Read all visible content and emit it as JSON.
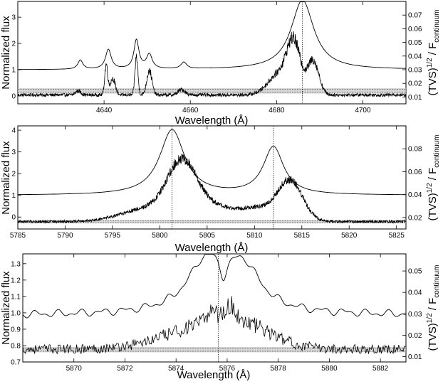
{
  "chart_data": [
    {
      "type": "line",
      "xlabel": "Wavelength (Å)",
      "ylabel_left": "Normalized flux",
      "ylabel_right": "(TVS)^1/2 / F_continuum",
      "ylabel_right_base": "(TVS)",
      "ylabel_right_exp": "1/2",
      "ylabel_right_mid": " / F",
      "ylabel_right_sub": "continuum",
      "xlim": [
        4620,
        4710
      ],
      "ylim_left": [
        -0.3,
        3.6
      ],
      "ylim_right": [
        0.005,
        0.08
      ],
      "x_ticks": [
        4640,
        4660,
        4680,
        4700
      ],
      "y_ticks_left": [
        0,
        1,
        2,
        3
      ],
      "y_ticks_right": [
        0.01,
        0.02,
        0.03,
        0.04,
        0.05,
        0.06,
        0.07
      ],
      "y_ticks_right_labels": [
        "0.01",
        "0.02",
        "0.03",
        "0.04",
        "0.05",
        "0.06",
        "0.07"
      ],
      "vlines": [
        4686
      ],
      "thresholds_right": [
        0.0135,
        0.0155
      ],
      "shaded_band_right": [
        0.0125,
        0.0165
      ],
      "mean_spectrum": {
        "baseline": 1.0,
        "lines": [
          {
            "center": 4634.5,
            "amp": 0.35,
            "width": 0.7
          },
          {
            "center": 4641,
            "amp": 0.75,
            "width": 0.8
          },
          {
            "center": 4647.5,
            "amp": 1.1,
            "width": 0.7
          },
          {
            "center": 4650.5,
            "amp": 0.55,
            "width": 0.8
          },
          {
            "center": 4658.5,
            "amp": 0.25,
            "width": 0.8
          },
          {
            "center": 4686,
            "amp": 2.65,
            "width": 3.2
          }
        ]
      },
      "tvs_profile": {
        "baseline": 0.0115,
        "noise": 0.0012,
        "bumps": [
          {
            "center": 4634,
            "amp": 0.003,
            "width": 0.6
          },
          {
            "center": 4640.5,
            "amp": 0.022,
            "width": 0.35
          },
          {
            "center": 4642,
            "amp": 0.012,
            "width": 0.6
          },
          {
            "center": 4647.5,
            "amp": 0.028,
            "width": 0.35
          },
          {
            "center": 4650.5,
            "amp": 0.018,
            "width": 0.6
          },
          {
            "center": 4658,
            "amp": 0.004,
            "width": 0.8
          },
          {
            "center": 4684,
            "amp": 0.036,
            "width": 1.6
          },
          {
            "center": 4680.5,
            "amp": 0.015,
            "width": 2.5
          },
          {
            "center": 4688.5,
            "amp": 0.025,
            "width": 1.3
          }
        ]
      }
    },
    {
      "type": "line",
      "xlabel": "Wavelength (Å)",
      "ylabel_left": "Normalized flux",
      "ylabel_right": "(TVS)^1/2 / F_continuum",
      "ylabel_right_base": "(TVS)",
      "ylabel_right_exp": "1/2",
      "ylabel_right_mid": " / F",
      "ylabel_right_sub": "continuum",
      "xlim": [
        5785,
        5826
      ],
      "ylim_left": [
        -0.55,
        4.2
      ],
      "ylim_right": [
        0.01,
        0.1
      ],
      "x_ticks": [
        5785,
        5790,
        5795,
        5800,
        5805,
        5810,
        5815,
        5820,
        5825
      ],
      "y_ticks_left": [
        0,
        1,
        2,
        3,
        4
      ],
      "y_ticks_right": [
        0.02,
        0.04,
        0.06,
        0.08
      ],
      "y_ticks_right_labels": [
        "0.02",
        "0.04",
        "0.06",
        "0.08"
      ],
      "vlines": [
        5801.3,
        5812.0
      ],
      "thresholds_right": [
        0.0155,
        0.017
      ],
      "shaded_band_right": [
        0.015,
        0.0175
      ],
      "mean_spectrum": {
        "baseline": 1.0,
        "lines": [
          {
            "center": 5801.3,
            "amp": 3.0,
            "width": 1.6
          },
          {
            "center": 5812.0,
            "amp": 2.2,
            "width": 1.3
          }
        ]
      },
      "tvs_profile": {
        "baseline": 0.0165,
        "noise": 0.0012,
        "bumps": [
          {
            "center": 5802.3,
            "amp": 0.045,
            "width": 1.5
          },
          {
            "center": 5799.0,
            "amp": 0.012,
            "width": 2.8
          },
          {
            "center": 5805.0,
            "amp": 0.012,
            "width": 1.8
          },
          {
            "center": 5813.8,
            "amp": 0.033,
            "width": 1.3
          },
          {
            "center": 5810.0,
            "amp": 0.012,
            "width": 2.4
          }
        ]
      }
    },
    {
      "type": "line",
      "xlabel": "Wavelength (Å)",
      "ylabel_left": "Normalized flux",
      "ylabel_right": "(TVS)^1/2 / F_continuum",
      "ylabel_right_base": "(TVS)",
      "ylabel_right_exp": "1/2",
      "ylabel_right_mid": " / F",
      "ylabel_right_sub": "continuum",
      "xlim": [
        5868,
        5883
      ],
      "ylim_left": [
        0.7,
        1.36
      ],
      "ylim_right": [
        0.0075,
        0.058
      ],
      "x_ticks": [
        5870,
        5872,
        5874,
        5876,
        5878,
        5880,
        5882
      ],
      "y_ticks_left": [
        0.7,
        0.8,
        0.9,
        1.0,
        1.1,
        1.2,
        1.3
      ],
      "y_ticks_left_labels": [
        "0.7",
        "0.8",
        "0.9",
        "1.0",
        "1.1",
        "1.2",
        "1.3"
      ],
      "y_ticks_right": [
        0.01,
        0.02,
        0.03,
        0.04,
        0.05
      ],
      "y_ticks_right_labels": [
        "0.01",
        "0.02",
        "0.03",
        "0.04",
        "0.05"
      ],
      "vlines": [
        5875.65
      ],
      "thresholds_right": [
        0.0125,
        0.014
      ],
      "shaded_band_right": [
        0.012,
        0.0145
      ],
      "mean_spectrum": {
        "baseline": 0.985,
        "lines": [
          {
            "center": 5875.2,
            "amp": 0.31,
            "width": 0.9
          },
          {
            "center": 5876.6,
            "amp": 0.27,
            "width": 0.85
          },
          {
            "center": 5875.85,
            "amp": -0.12,
            "width": 0.18
          }
        ]
      },
      "tvs_profile": {
        "baseline": 0.0135,
        "noise": 0.0022,
        "bumps": [
          {
            "center": 5875.0,
            "amp": 0.009,
            "width": 1.6
          },
          {
            "center": 5876.6,
            "amp": 0.008,
            "width": 1.2
          },
          {
            "center": 5875.4,
            "amp": 0.006,
            "width": 0.15
          },
          {
            "center": 5876.1,
            "amp": 0.006,
            "width": 0.2
          }
        ]
      }
    }
  ]
}
